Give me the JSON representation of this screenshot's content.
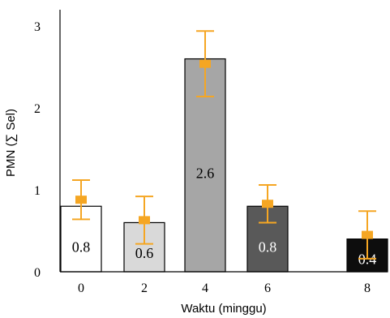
{
  "chart_data": {
    "type": "bar",
    "title": "",
    "xlabel": "Waktu (minggu)",
    "ylabel": "PMN (∑ Sel)",
    "categories": [
      "0",
      "2",
      "4",
      "6",
      "8"
    ],
    "values": [
      0.8,
      0.6,
      2.6,
      0.8,
      0.4
    ],
    "data_labels": [
      "0.8",
      "0.6",
      "2.6",
      "0.8",
      "0.4"
    ],
    "bar_colors": [
      "#ffffff",
      "#d9d9d9",
      "#a6a6a6",
      "#595959",
      "#0d0d0d"
    ],
    "label_colors": [
      "#000000",
      "#000000",
      "#000000",
      "#ffffff",
      "#ffffff"
    ],
    "marker_values": [
      0.88,
      0.63,
      2.54,
      0.83,
      0.45
    ],
    "error_upper": [
      1.12,
      0.92,
      2.94,
      1.06,
      0.74
    ],
    "error_lower": [
      0.64,
      0.34,
      2.14,
      0.6,
      0.16
    ],
    "error_color": "#f5a623",
    "ylim": [
      0,
      3.2
    ],
    "yticks": [
      "0",
      "1",
      "2",
      "3"
    ],
    "grid": false,
    "legend": "none"
  }
}
